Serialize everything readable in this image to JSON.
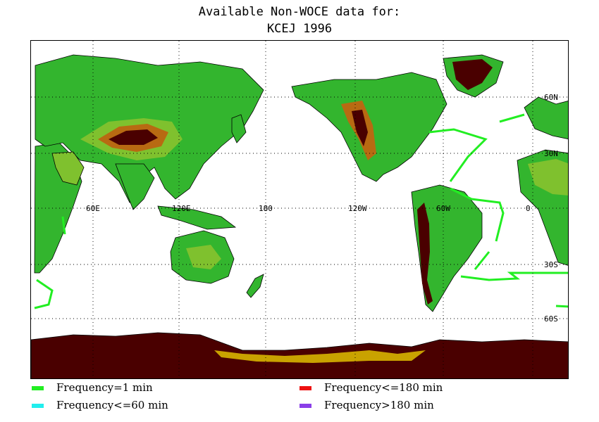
{
  "title": {
    "line1": "Available Non-WOCE data for:",
    "line2": "KCEJ 1996"
  },
  "map": {
    "longitude_labels": [
      "60E",
      "120E",
      "180",
      "120W",
      "60W",
      "0"
    ],
    "latitude_labels": [
      "60N",
      "30N",
      "30S",
      "60S"
    ],
    "grid": true,
    "colors": {
      "land_low": "#33b52e",
      "land_mid": "#7fc12e",
      "land_high": "#c9a200",
      "land_higher": "#b86a12",
      "land_peak": "#4a0000",
      "ocean": "#ffffff",
      "track": "#22ee22"
    }
  },
  "legend": [
    {
      "label": "Frequency=1 min",
      "color": "#22ee22"
    },
    {
      "label": "Frequency<=180 min",
      "color": "#ee1111"
    },
    {
      "label": "Frequency<=60 min",
      "color": "#22eeee"
    },
    {
      "label": "Frequency>180 min",
      "color": "#8a3ee8"
    }
  ]
}
